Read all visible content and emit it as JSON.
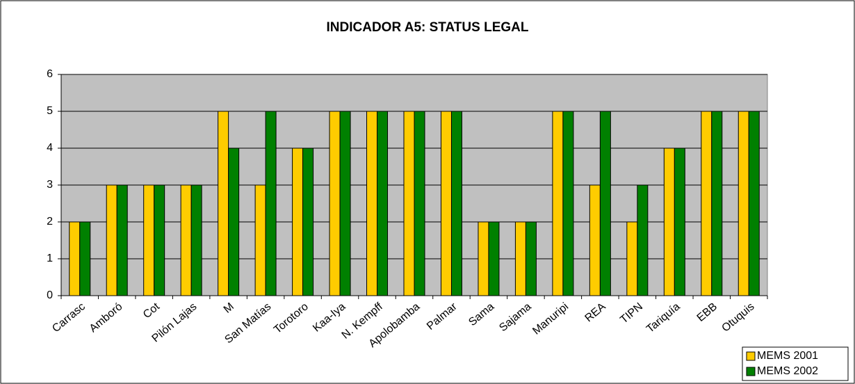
{
  "chart_data": {
    "type": "bar",
    "title": "INDICADOR A5: STATUS LEGAL",
    "categories": [
      "Carrasc",
      "Amboró",
      "Cot",
      "Pilón Lajas",
      "M",
      "San Matías",
      "Torotoro",
      "Kaa-Iya",
      "N. Kempff",
      "Apolobamba",
      "Palmar",
      "Sama",
      "Sajama",
      "Manuripi",
      "REA",
      "TIPN",
      "Tariquía",
      "EBB",
      "Otuquis"
    ],
    "series": [
      {
        "name": "MEMS 2001",
        "color": "#ffcc00",
        "values": [
          2,
          3,
          3,
          3,
          5,
          3,
          4,
          5,
          5,
          5,
          5,
          2,
          2,
          5,
          3,
          2,
          4,
          5,
          5
        ]
      },
      {
        "name": "MEMS 2002",
        "color": "#008000",
        "values": [
          2,
          3,
          3,
          3,
          4,
          5,
          4,
          5,
          5,
          5,
          5,
          2,
          2,
          5,
          5,
          3,
          4,
          5,
          5
        ]
      }
    ],
    "ylim": [
      0,
      6
    ],
    "yticks": [
      0,
      1,
      2,
      3,
      4,
      5,
      6
    ],
    "grid": true,
    "legend": "lower right",
    "plot_background": "#c0c0c0"
  }
}
